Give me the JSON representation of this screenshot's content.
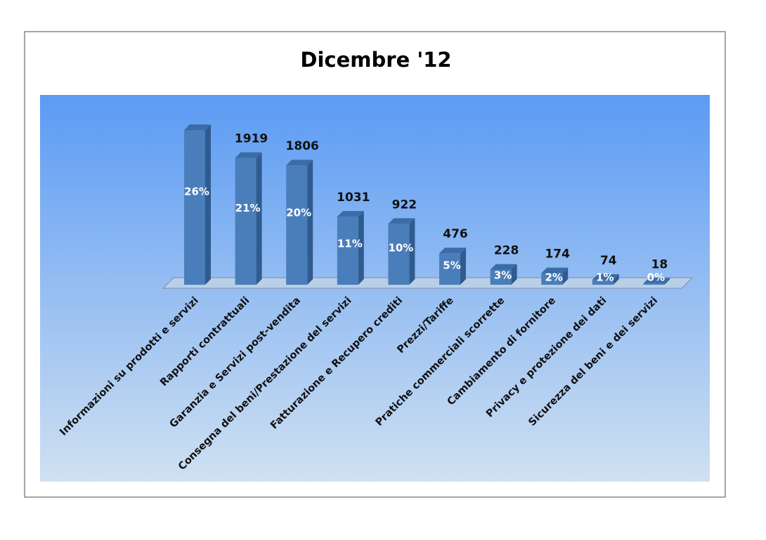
{
  "chart_data": {
    "type": "bar3d",
    "title": "Dicembre '12",
    "categories": [
      "Informazioni su prodotti e servizi",
      "Rapporti contrattuali",
      "Garanzia e Servizi post-vendita",
      "Consegna del beni/Prestazione del servizi",
      "Fatturazione e Recupero crediti",
      "Prezzi/Tariffe",
      "Pratiche commerciali scorrette",
      "Cambiamento di fornitore",
      "Privacy e protezione dei dati",
      "Sicurezza del beni e dei servizi"
    ],
    "values": [
      2340,
      1919,
      1806,
      1031,
      922,
      476,
      228,
      174,
      74,
      18
    ],
    "value_labels": [
      null,
      "1919",
      "1806",
      "1031",
      "922",
      "476",
      "228",
      "174",
      "74",
      "18"
    ],
    "percent_labels": [
      "26%",
      "21%",
      "20%",
      "11%",
      "10%",
      "5%",
      "3%",
      "2%",
      "1%",
      "0%"
    ],
    "color": "#4a7ebb"
  }
}
